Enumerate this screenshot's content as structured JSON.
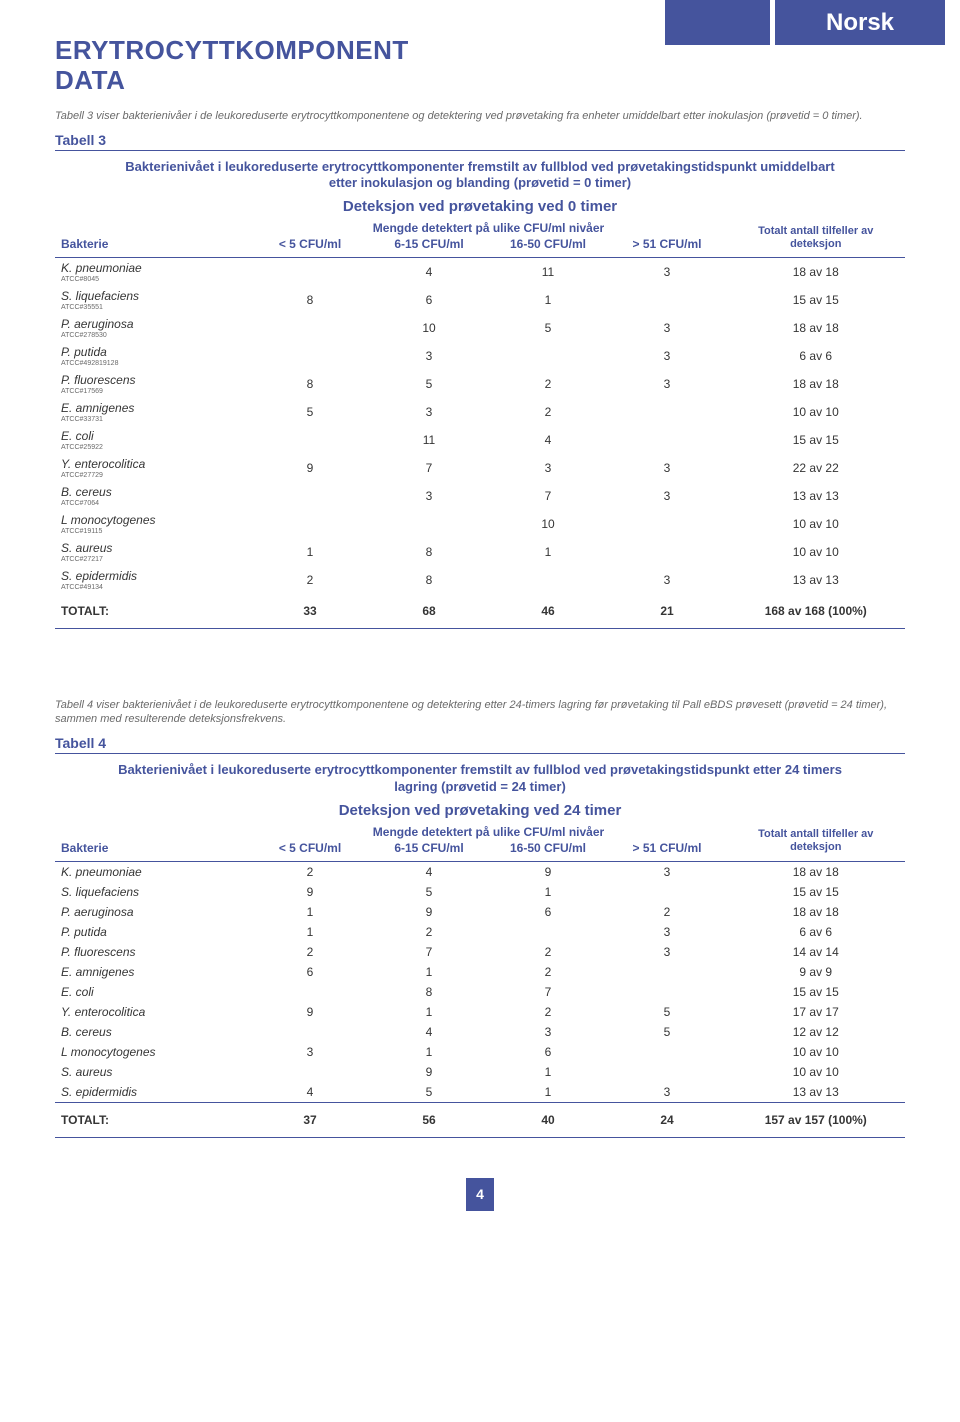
{
  "language_tag": "Norsk",
  "title": "ERYTROCYTTKOMPONENT DATA",
  "intro1": "Tabell 3 viser bakterienivåer i de leukoreduserte erytrocyttkomponentene og detektering ved prøvetaking fra enheter umiddelbart etter inokulasjon (prøvetid = 0 timer).",
  "table3": {
    "label": "Tabell 3",
    "caption": "Bakterienivået i leukoreduserte erytrocyttkomponenter fremstilt av fullblod ved prøvetakingstidspunkt umiddelbart etter inokulasjon og blanding (prøvetid = 0 timer)",
    "subtitle": "Deteksjon ved prøvetaking ved 0 timer",
    "cfu_header": "Mengde detektert på ulike CFU/ml nivåer",
    "total_header": "Totalt antall tilfeller av deteksjon",
    "cols": {
      "bact": "Bakterie",
      "c1": "< 5 CFU/ml",
      "c2": "6-15 CFU/ml",
      "c3": "16-50 CFU/ml",
      "c4": "> 51 CFU/ml"
    },
    "rows": [
      {
        "name": "K. pneumoniae",
        "atcc": "ATCC#8045",
        "v": [
          "",
          "4",
          "11",
          "3"
        ],
        "tot": "18 av 18"
      },
      {
        "name": "S. liquefaciens",
        "atcc": "ATCC#35551",
        "v": [
          "8",
          "6",
          "1",
          ""
        ],
        "tot": "15 av 15"
      },
      {
        "name": "P. aeruginosa",
        "atcc": "ATCC#278530",
        "v": [
          "",
          "10",
          "5",
          "3"
        ],
        "tot": "18 av 18"
      },
      {
        "name": "P. putida",
        "atcc": "ATCC#492819128",
        "v": [
          "",
          "3",
          "",
          "3"
        ],
        "tot": "6 av 6"
      },
      {
        "name": "P. fluorescens",
        "atcc": "ATCC#17569",
        "v": [
          "8",
          "5",
          "2",
          "3"
        ],
        "tot": "18 av 18"
      },
      {
        "name": "E. amnigenes",
        "atcc": "ATCC#33731",
        "v": [
          "5",
          "3",
          "2",
          ""
        ],
        "tot": "10 av 10"
      },
      {
        "name": "E. coli",
        "atcc": "ATCC#25922",
        "v": [
          "",
          "11",
          "4",
          ""
        ],
        "tot": "15 av 15"
      },
      {
        "name": "Y. enterocolitica",
        "atcc": "ATCC#27729",
        "v": [
          "9",
          "7",
          "3",
          "3"
        ],
        "tot": "22 av 22"
      },
      {
        "name": "B. cereus",
        "atcc": "ATCC#7064",
        "v": [
          "",
          "3",
          "7",
          "3"
        ],
        "tot": "13 av 13"
      },
      {
        "name": "L monocytogenes",
        "atcc": "ATCC#19115",
        "v": [
          "",
          "",
          "10",
          ""
        ],
        "tot": "10 av 10"
      },
      {
        "name": "S. aureus",
        "atcc": "ATCC#27217",
        "v": [
          "1",
          "8",
          "1",
          ""
        ],
        "tot": "10 av 10"
      },
      {
        "name": "S. epidermidis",
        "atcc": "ATCC#49134",
        "v": [
          "2",
          "8",
          "",
          "3"
        ],
        "tot": "13 av 13"
      }
    ],
    "total": {
      "label": "TOTALT:",
      "v": [
        "33",
        "68",
        "46",
        "21"
      ],
      "tot": "168 av 168 (100%)"
    }
  },
  "intro2": "Tabell 4 viser bakterienivået i de leukoreduserte erytrocyttkomponentene og detektering etter 24-timers lagring før prøvetaking til Pall eBDS prøvesett (prøvetid = 24 timer), sammen med resulterende deteksjonsfrekvens.",
  "table4": {
    "label": "Tabell 4",
    "caption": "Bakterienivået i leukoreduserte erytrocyttkomponenter fremstilt av fullblod ved prøvetakingstidspunkt etter 24 timers lagring (prøvetid = 24 timer)",
    "subtitle": "Deteksjon ved prøvetaking ved 24 timer",
    "cfu_header": "Mengde detektert på ulike CFU/ml nivåer",
    "total_header": "Totalt antall tilfeller av deteksjon",
    "cols": {
      "bact": "Bakterie",
      "c1": "< 5 CFU/ml",
      "c2": "6-15 CFU/ml",
      "c3": "16-50 CFU/ml",
      "c4": "> 51 CFU/ml"
    },
    "rows": [
      {
        "name": "K. pneumoniae",
        "v": [
          "2",
          "4",
          "9",
          "3"
        ],
        "tot": "18 av 18"
      },
      {
        "name": "S. liquefaciens",
        "v": [
          "9",
          "5",
          "1",
          ""
        ],
        "tot": "15 av 15"
      },
      {
        "name": "P. aeruginosa",
        "v": [
          "1",
          "9",
          "6",
          "2"
        ],
        "tot": "18 av 18"
      },
      {
        "name": "P. putida",
        "v": [
          "1",
          "2",
          "",
          "3"
        ],
        "tot": "6 av 6"
      },
      {
        "name": "P. fluorescens",
        "v": [
          "2",
          "7",
          "2",
          "3"
        ],
        "tot": "14 av 14"
      },
      {
        "name": "E. amnigenes",
        "v": [
          "6",
          "1",
          "2",
          ""
        ],
        "tot": "9 av 9"
      },
      {
        "name": "E. coli",
        "v": [
          "",
          "8",
          "7",
          ""
        ],
        "tot": "15 av 15"
      },
      {
        "name": "Y. enterocolitica",
        "v": [
          "9",
          "1",
          "2",
          "5"
        ],
        "tot": "17 av 17"
      },
      {
        "name": "B. cereus",
        "v": [
          "",
          "4",
          "3",
          "5"
        ],
        "tot": "12 av 12"
      },
      {
        "name": "L monocytogenes",
        "v": [
          "3",
          "1",
          "6",
          ""
        ],
        "tot": "10 av 10"
      },
      {
        "name": "S. aureus",
        "v": [
          "",
          "9",
          "1",
          ""
        ],
        "tot": "10 av 10"
      },
      {
        "name": "S. epidermidis",
        "v": [
          "4",
          "5",
          "1",
          "3"
        ],
        "tot": "13 av 13"
      }
    ],
    "total": {
      "label": "TOTALT:",
      "v": [
        "37",
        "56",
        "40",
        "24"
      ],
      "tot": "157 av 157 (100%)"
    }
  },
  "page_number": "4"
}
